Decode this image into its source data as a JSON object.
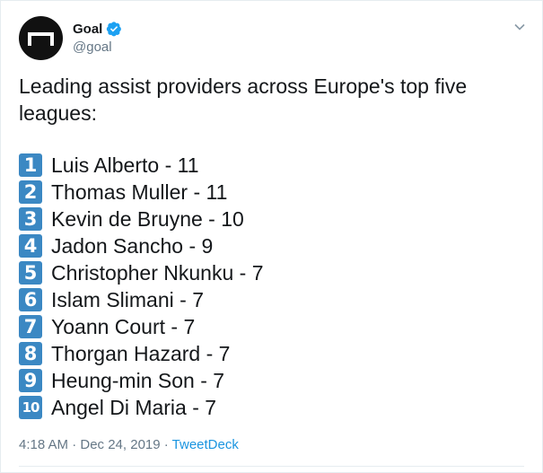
{
  "account": {
    "name": "Goal",
    "handle": "@goal"
  },
  "tweet": {
    "text": "Leading assist providers across Europe's top five leagues:",
    "list": [
      {
        "number": "1",
        "text": "Luis Alberto - 11"
      },
      {
        "number": "2",
        "text": "Thomas Muller - 11"
      },
      {
        "number": "3",
        "text": "Kevin de Bruyne - 10"
      },
      {
        "number": "4",
        "text": "Jadon Sancho - 9"
      },
      {
        "number": "5",
        "text": "Christopher Nkunku - 7"
      },
      {
        "number": "6",
        "text": "Islam Slimani - 7"
      },
      {
        "number": "7",
        "text": "Yoann Court - 7"
      },
      {
        "number": "8",
        "text": "Thorgan Hazard - 7"
      },
      {
        "number": "9",
        "text": "Heung-min Son - 7"
      },
      {
        "number": "10",
        "text": "Angel Di Maria - 7"
      }
    ]
  },
  "meta": {
    "timestamp": "4:18 AM · Dec 24, 2019 · ",
    "source": "TweetDeck"
  },
  "colors": {
    "keycap": "#3b88c3",
    "verified": "#1da1f2",
    "link": "#1b95e0",
    "muted": "#657786"
  },
  "icons": {
    "avatar": "goal-logo-icon",
    "verified": "verified-badge-icon",
    "menu": "chevron-down-icon"
  }
}
